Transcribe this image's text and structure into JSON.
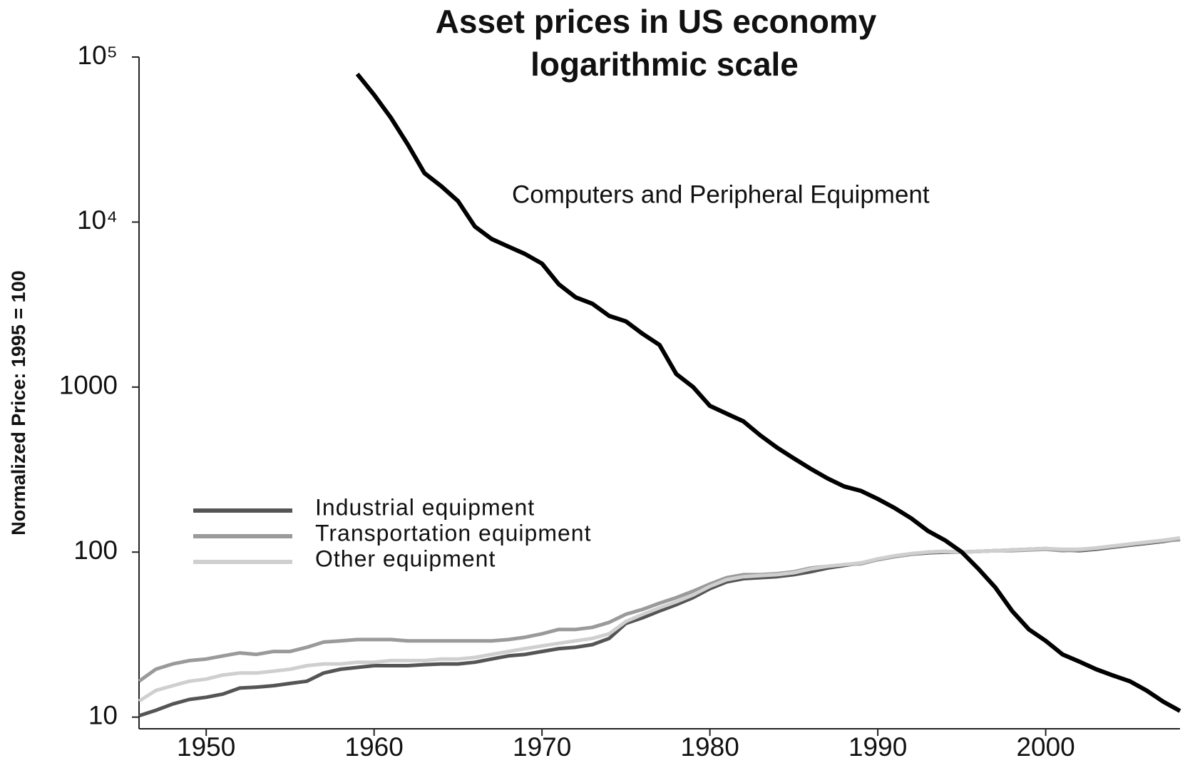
{
  "chart_data": {
    "type": "line",
    "title": "Asset prices in US economy",
    "subtitle": "logarithmic scale",
    "ylabel": "Normalized Price: 1995 = 100",
    "annotation": "Computers and Peripheral Equipment",
    "log_y": true,
    "grid": false,
    "legend": "left",
    "xlim": [
      1946,
      2008
    ],
    "xticks": [
      1950,
      1960,
      1970,
      1980,
      1990,
      2000
    ],
    "ylim": [
      8.5,
      100000
    ],
    "yticks": [
      10,
      100,
      1000,
      {
        "value": 10000,
        "label": "10⁴"
      },
      {
        "value": 100000,
        "label": "10⁵"
      }
    ],
    "x": [
      1946,
      1947,
      1948,
      1949,
      1950,
      1951,
      1952,
      1953,
      1954,
      1955,
      1956,
      1957,
      1958,
      1959,
      1960,
      1961,
      1962,
      1963,
      1964,
      1965,
      1966,
      1967,
      1968,
      1969,
      1970,
      1971,
      1972,
      1973,
      1974,
      1975,
      1976,
      1977,
      1978,
      1979,
      1980,
      1981,
      1982,
      1983,
      1984,
      1985,
      1986,
      1987,
      1988,
      1989,
      1990,
      1991,
      1992,
      1993,
      1994,
      1995,
      1996,
      1997,
      1998,
      1999,
      2000,
      2001,
      2002,
      2003,
      2004,
      2005,
      2006,
      2007,
      2008
    ],
    "series": [
      {
        "name": "Industrial equipment",
        "color": "#555555",
        "legend": true,
        "values": [
          10.2,
          11,
          12,
          12.8,
          13.2,
          13.8,
          15,
          15.2,
          15.5,
          16,
          16.5,
          18.5,
          19.5,
          20,
          20.5,
          20.5,
          20.5,
          20.8,
          21,
          21,
          21.5,
          22.5,
          23.5,
          24,
          25,
          26,
          26.5,
          27.5,
          30,
          37,
          40,
          44,
          48,
          53,
          60,
          66,
          69,
          70,
          71,
          73,
          76,
          80,
          83,
          86,
          90,
          94,
          97,
          99,
          100,
          100,
          101,
          102,
          103,
          104,
          105,
          103,
          102,
          104,
          107,
          110,
          113,
          116,
          120
        ]
      },
      {
        "name": "Transportation equipment",
        "color": "#9a9a9a",
        "legend": true,
        "values": [
          16.5,
          19.5,
          21,
          22,
          22.5,
          23.5,
          24.5,
          24,
          25,
          25,
          26.5,
          28.5,
          29,
          29.5,
          29.5,
          29.5,
          29,
          29,
          29,
          29,
          29,
          29,
          29.5,
          30.5,
          32,
          34,
          34,
          35,
          37.5,
          42,
          45,
          49,
          53,
          58,
          64,
          70,
          73,
          73,
          74,
          76,
          80,
          82,
          84,
          85,
          90,
          94,
          97,
          100,
          101,
          100,
          101,
          102,
          102,
          103,
          104,
          102,
          103,
          105,
          108,
          111,
          114,
          117,
          119
        ]
      },
      {
        "name": "Other equipment",
        "color": "#cfcfcf",
        "legend": true,
        "values": [
          12.5,
          14.5,
          15.5,
          16.5,
          17,
          18,
          18.5,
          18.5,
          19,
          19.5,
          20.5,
          21,
          21,
          21.5,
          21.5,
          22,
          22,
          22,
          22.5,
          22.5,
          23,
          24,
          25,
          26,
          27,
          28,
          29,
          30,
          32,
          38,
          42,
          46,
          50,
          55,
          62,
          68,
          71,
          72,
          73,
          75,
          79,
          82,
          84,
          86,
          91,
          95,
          98,
          100,
          101,
          100,
          101,
          102,
          103,
          104,
          105,
          104,
          104,
          106,
          109,
          112,
          115,
          118,
          122
        ]
      },
      {
        "name": "Computers and Peripheral Equipment",
        "color": "#000000",
        "legend": false,
        "values": [
          null,
          null,
          null,
          null,
          null,
          null,
          null,
          null,
          null,
          null,
          null,
          null,
          null,
          79000,
          59000,
          42900,
          29600,
          19800,
          16500,
          13400,
          9400,
          7900,
          7100,
          6400,
          5600,
          4200,
          3500,
          3200,
          2700,
          2500,
          2100,
          1800,
          1200,
          1000,
          770,
          690,
          620,
          510,
          430,
          370,
          320,
          280,
          250,
          235,
          210,
          185,
          160,
          134,
          118,
          100,
          79,
          61,
          44,
          34,
          29,
          24,
          21.7,
          19.5,
          17.9,
          16.5,
          14.5,
          12.4,
          10.9
        ]
      }
    ]
  }
}
